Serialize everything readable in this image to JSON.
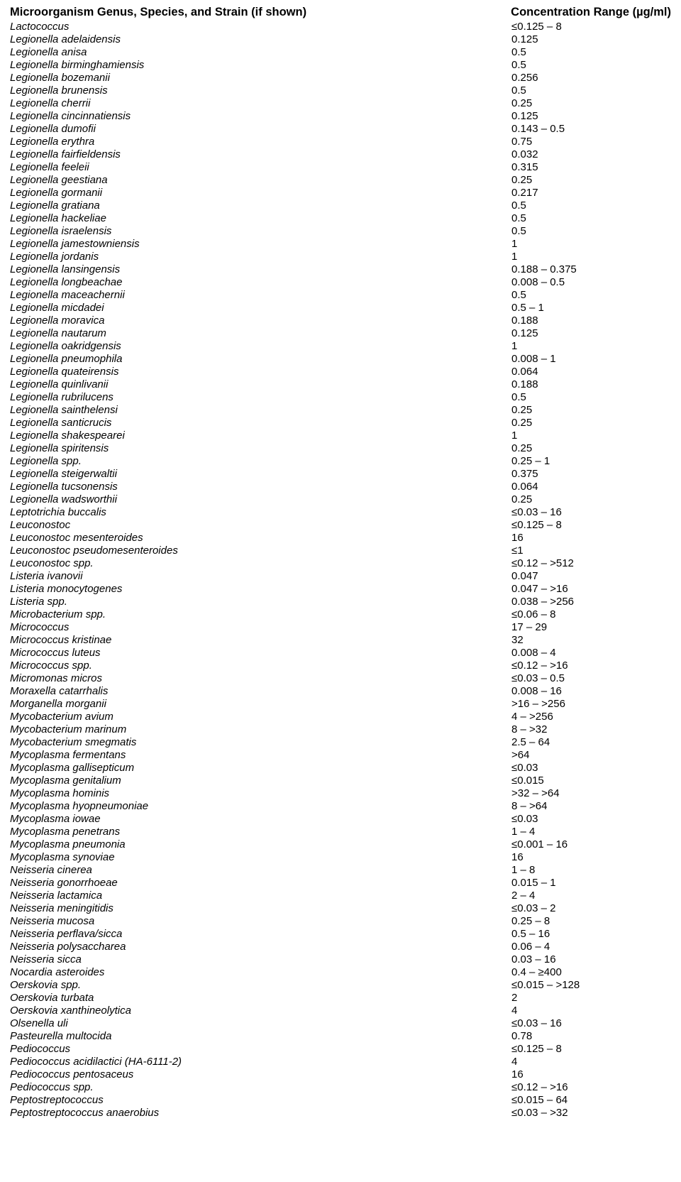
{
  "header": {
    "name": "Microorganism Genus, Species, and Strain (if shown)",
    "conc": "Concentration Range (µg/ml)"
  },
  "rows": [
    {
      "name": "Lactococcus",
      "conc": "≤0.125 – 8"
    },
    {
      "name": "Legionella adelaidensis",
      "conc": "0.125"
    },
    {
      "name": "Legionella anisa",
      "conc": "0.5"
    },
    {
      "name": "Legionella birminghamiensis",
      "conc": "0.5"
    },
    {
      "name": "Legionella bozemanii",
      "conc": "0.256"
    },
    {
      "name": "Legionella brunensis",
      "conc": "0.5"
    },
    {
      "name": "Legionella cherrii",
      "conc": "0.25"
    },
    {
      "name": "Legionella cincinnatiensis",
      "conc": "0.125"
    },
    {
      "name": "Legionella dumofii",
      "conc": "0.143 – 0.5"
    },
    {
      "name": "Legionella erythra",
      "conc": "0.75"
    },
    {
      "name": "Legionella fairfieldensis",
      "conc": "0.032"
    },
    {
      "name": "Legionella feeleii",
      "conc": "0.315"
    },
    {
      "name": "Legionella geestiana",
      "conc": "0.25"
    },
    {
      "name": "Legionella gormanii",
      "conc": "0.217"
    },
    {
      "name": "Legionella gratiana",
      "conc": "0.5"
    },
    {
      "name": "Legionella hackeliae",
      "conc": "0.5"
    },
    {
      "name": "Legionella israelensis",
      "conc": "0.5"
    },
    {
      "name": "Legionella jamestowniensis",
      "conc": "1"
    },
    {
      "name": "Legionella jordanis",
      "conc": "1"
    },
    {
      "name": "Legionella lansingensis",
      "conc": "0.188 – 0.375"
    },
    {
      "name": "Legionella longbeachae",
      "conc": "0.008 – 0.5"
    },
    {
      "name": "Legionella maceachernii",
      "conc": "0.5"
    },
    {
      "name": "Legionella micdadei",
      "conc": "0.5 – 1"
    },
    {
      "name": "Legionella moravica",
      "conc": "0.188"
    },
    {
      "name": "Legionella nautarum",
      "conc": "0.125"
    },
    {
      "name": "Legionella oakridgensis",
      "conc": "1"
    },
    {
      "name": "Legionella pneumophila",
      "conc": "0.008 – 1"
    },
    {
      "name": "Legionella quateirensis",
      "conc": "0.064"
    },
    {
      "name": "Legionella quinlivanii",
      "conc": "0.188"
    },
    {
      "name": "Legionella rubrilucens",
      "conc": "0.5"
    },
    {
      "name": "Legionella sainthelensi",
      "conc": "0.25"
    },
    {
      "name": "Legionella santicrucis",
      "conc": "0.25"
    },
    {
      "name": "Legionella shakespearei",
      "conc": "1"
    },
    {
      "name": "Legionella spiritensis",
      "conc": "0.25"
    },
    {
      "name": "Legionella spp.",
      "conc": "0.25 – 1"
    },
    {
      "name": "Legionella steigerwaltii",
      "conc": "0.375"
    },
    {
      "name": "Legionella tucsonensis",
      "conc": "0.064"
    },
    {
      "name": "Legionella wadsworthii",
      "conc": "0.25"
    },
    {
      "name": "Leptotrichia buccalis",
      "conc": "≤0.03 – 16"
    },
    {
      "name": "Leuconostoc",
      "conc": "≤0.125 – 8"
    },
    {
      "name": "Leuconostoc mesenteroides",
      "conc": "16"
    },
    {
      "name": "Leuconostoc pseudomesenteroides",
      "conc": "≤1"
    },
    {
      "name": "Leuconostoc spp.",
      "conc": "≤0.12 – >512"
    },
    {
      "name": "Listeria ivanovii",
      "conc": "0.047"
    },
    {
      "name": "Listeria monocytogenes",
      "conc": "0.047 – >16"
    },
    {
      "name": "Listeria spp.",
      "conc": "0.038 – >256"
    },
    {
      "name": "Microbacterium spp.",
      "conc": "≤0.06 – 8"
    },
    {
      "name": "Micrococcus",
      "conc": "17 – 29"
    },
    {
      "name": "Micrococcus kristinae",
      "conc": "32"
    },
    {
      "name": "Micrococcus luteus",
      "conc": "0.008 – 4"
    },
    {
      "name": "Micrococcus spp.",
      "conc": "≤0.12 – >16"
    },
    {
      "name": "Micromonas micros",
      "conc": "≤0.03 – 0.5"
    },
    {
      "name": "Moraxella catarrhalis",
      "conc": "0.008 – 16"
    },
    {
      "name": "Morganella morganii",
      "conc": ">16 – >256"
    },
    {
      "name": "Mycobacterium avium",
      "conc": "4 – >256"
    },
    {
      "name": "Mycobacterium marinum",
      "conc": "8 – >32"
    },
    {
      "name": "Mycobacterium smegmatis",
      "conc": "2.5 – 64"
    },
    {
      "name": "Mycoplasma fermentans",
      "conc": ">64"
    },
    {
      "name": "Mycoplasma gallisepticum",
      "conc": "≤0.03"
    },
    {
      "name": "Mycoplasma genitalium",
      "conc": "≤0.015"
    },
    {
      "name": "Mycoplasma hominis",
      "conc": ">32 – >64"
    },
    {
      "name": "Mycoplasma hyopneumoniae",
      "conc": "8 – >64"
    },
    {
      "name": "Mycoplasma iowae",
      "conc": "≤0.03"
    },
    {
      "name": "Mycoplasma penetrans",
      "conc": "1 – 4"
    },
    {
      "name": "Mycoplasma pneumonia",
      "conc": "≤0.001 – 16"
    },
    {
      "name": "Mycoplasma synoviae",
      "conc": "16"
    },
    {
      "name": "Neisseria cinerea",
      "conc": "1 – 8"
    },
    {
      "name": "Neisseria gonorrhoeae",
      "conc": "0.015 – 1"
    },
    {
      "name": "Neisseria lactamica",
      "conc": "2 – 4"
    },
    {
      "name": "Neisseria meningitidis",
      "conc": "≤0.03 – 2"
    },
    {
      "name": "Neisseria mucosa",
      "conc": "0.25 – 8"
    },
    {
      "name": "Neisseria perflava/sicca",
      "conc": "0.5 – 16"
    },
    {
      "name": "Neisseria polysaccharea",
      "conc": "0.06 – 4"
    },
    {
      "name": "Neisseria sicca",
      "conc": "0.03 – 16"
    },
    {
      "name": "Nocardia asteroides",
      "conc": "0.4 – ≥400"
    },
    {
      "name": "Oerskovia spp.",
      "conc": "≤0.015 – >128"
    },
    {
      "name": "Oerskovia turbata",
      "conc": "2"
    },
    {
      "name": "Oerskovia xanthineolytica",
      "conc": "4"
    },
    {
      "name": "Olsenella uli",
      "conc": "≤0.03 – 16"
    },
    {
      "name": "Pasteurella multocida",
      "conc": "0.78"
    },
    {
      "name": "Pediococcus",
      "conc": "≤0.125 – 8"
    },
    {
      "name": "Pediococcus acidilactici (HA-6111-2)",
      "conc": "4"
    },
    {
      "name": "Pediococcus pentosaceus",
      "conc": "16"
    },
    {
      "name": "Pediococcus spp.",
      "conc": "≤0.12 – >16"
    },
    {
      "name": "Peptostreptococcus",
      "conc": "≤0.015 – 64"
    },
    {
      "name": "Peptostreptococcus anaerobius",
      "conc": "≤0.03 – >32"
    }
  ]
}
